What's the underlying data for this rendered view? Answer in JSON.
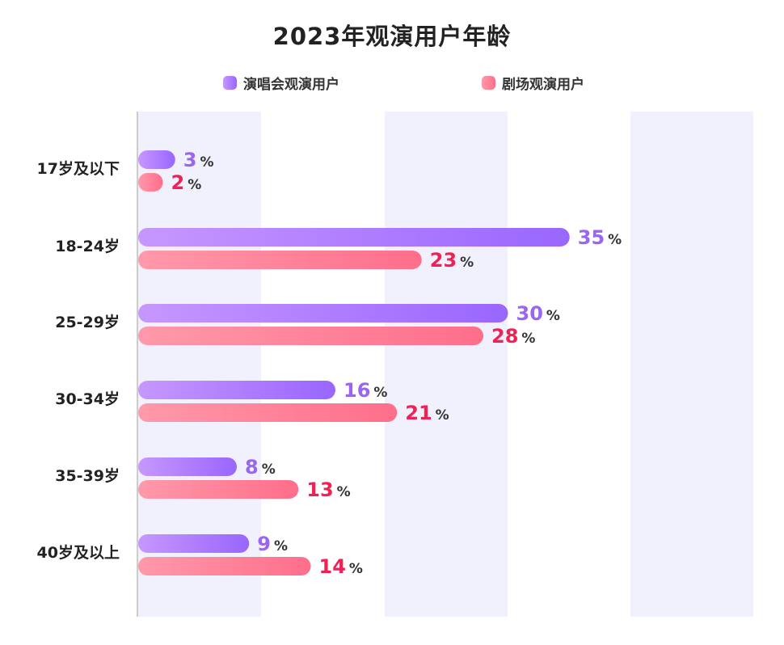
{
  "chart_data": {
    "type": "bar",
    "orientation": "horizontal",
    "title": "2023年观演用户年龄",
    "categories": [
      "17岁及以下",
      "18-24岁",
      "25-29岁",
      "30-34岁",
      "35-39岁",
      "40岁及以上"
    ],
    "series": [
      {
        "name": "演唱会观演用户",
        "values": [
          3,
          35,
          30,
          16,
          8,
          9
        ],
        "color": "#9966ff",
        "color_light": "#c797ff",
        "label_color": "#9966ee"
      },
      {
        "name": "剧场观演用户",
        "values": [
          2,
          23,
          28,
          21,
          13,
          14
        ],
        "color": "#ff6e8a",
        "color_light": "#ff99aa",
        "label_color": "#ee2255"
      }
    ],
    "unit": "%",
    "legend_position": "top",
    "grid": "alternating vertical bands",
    "xlim": [
      0,
      50
    ]
  }
}
